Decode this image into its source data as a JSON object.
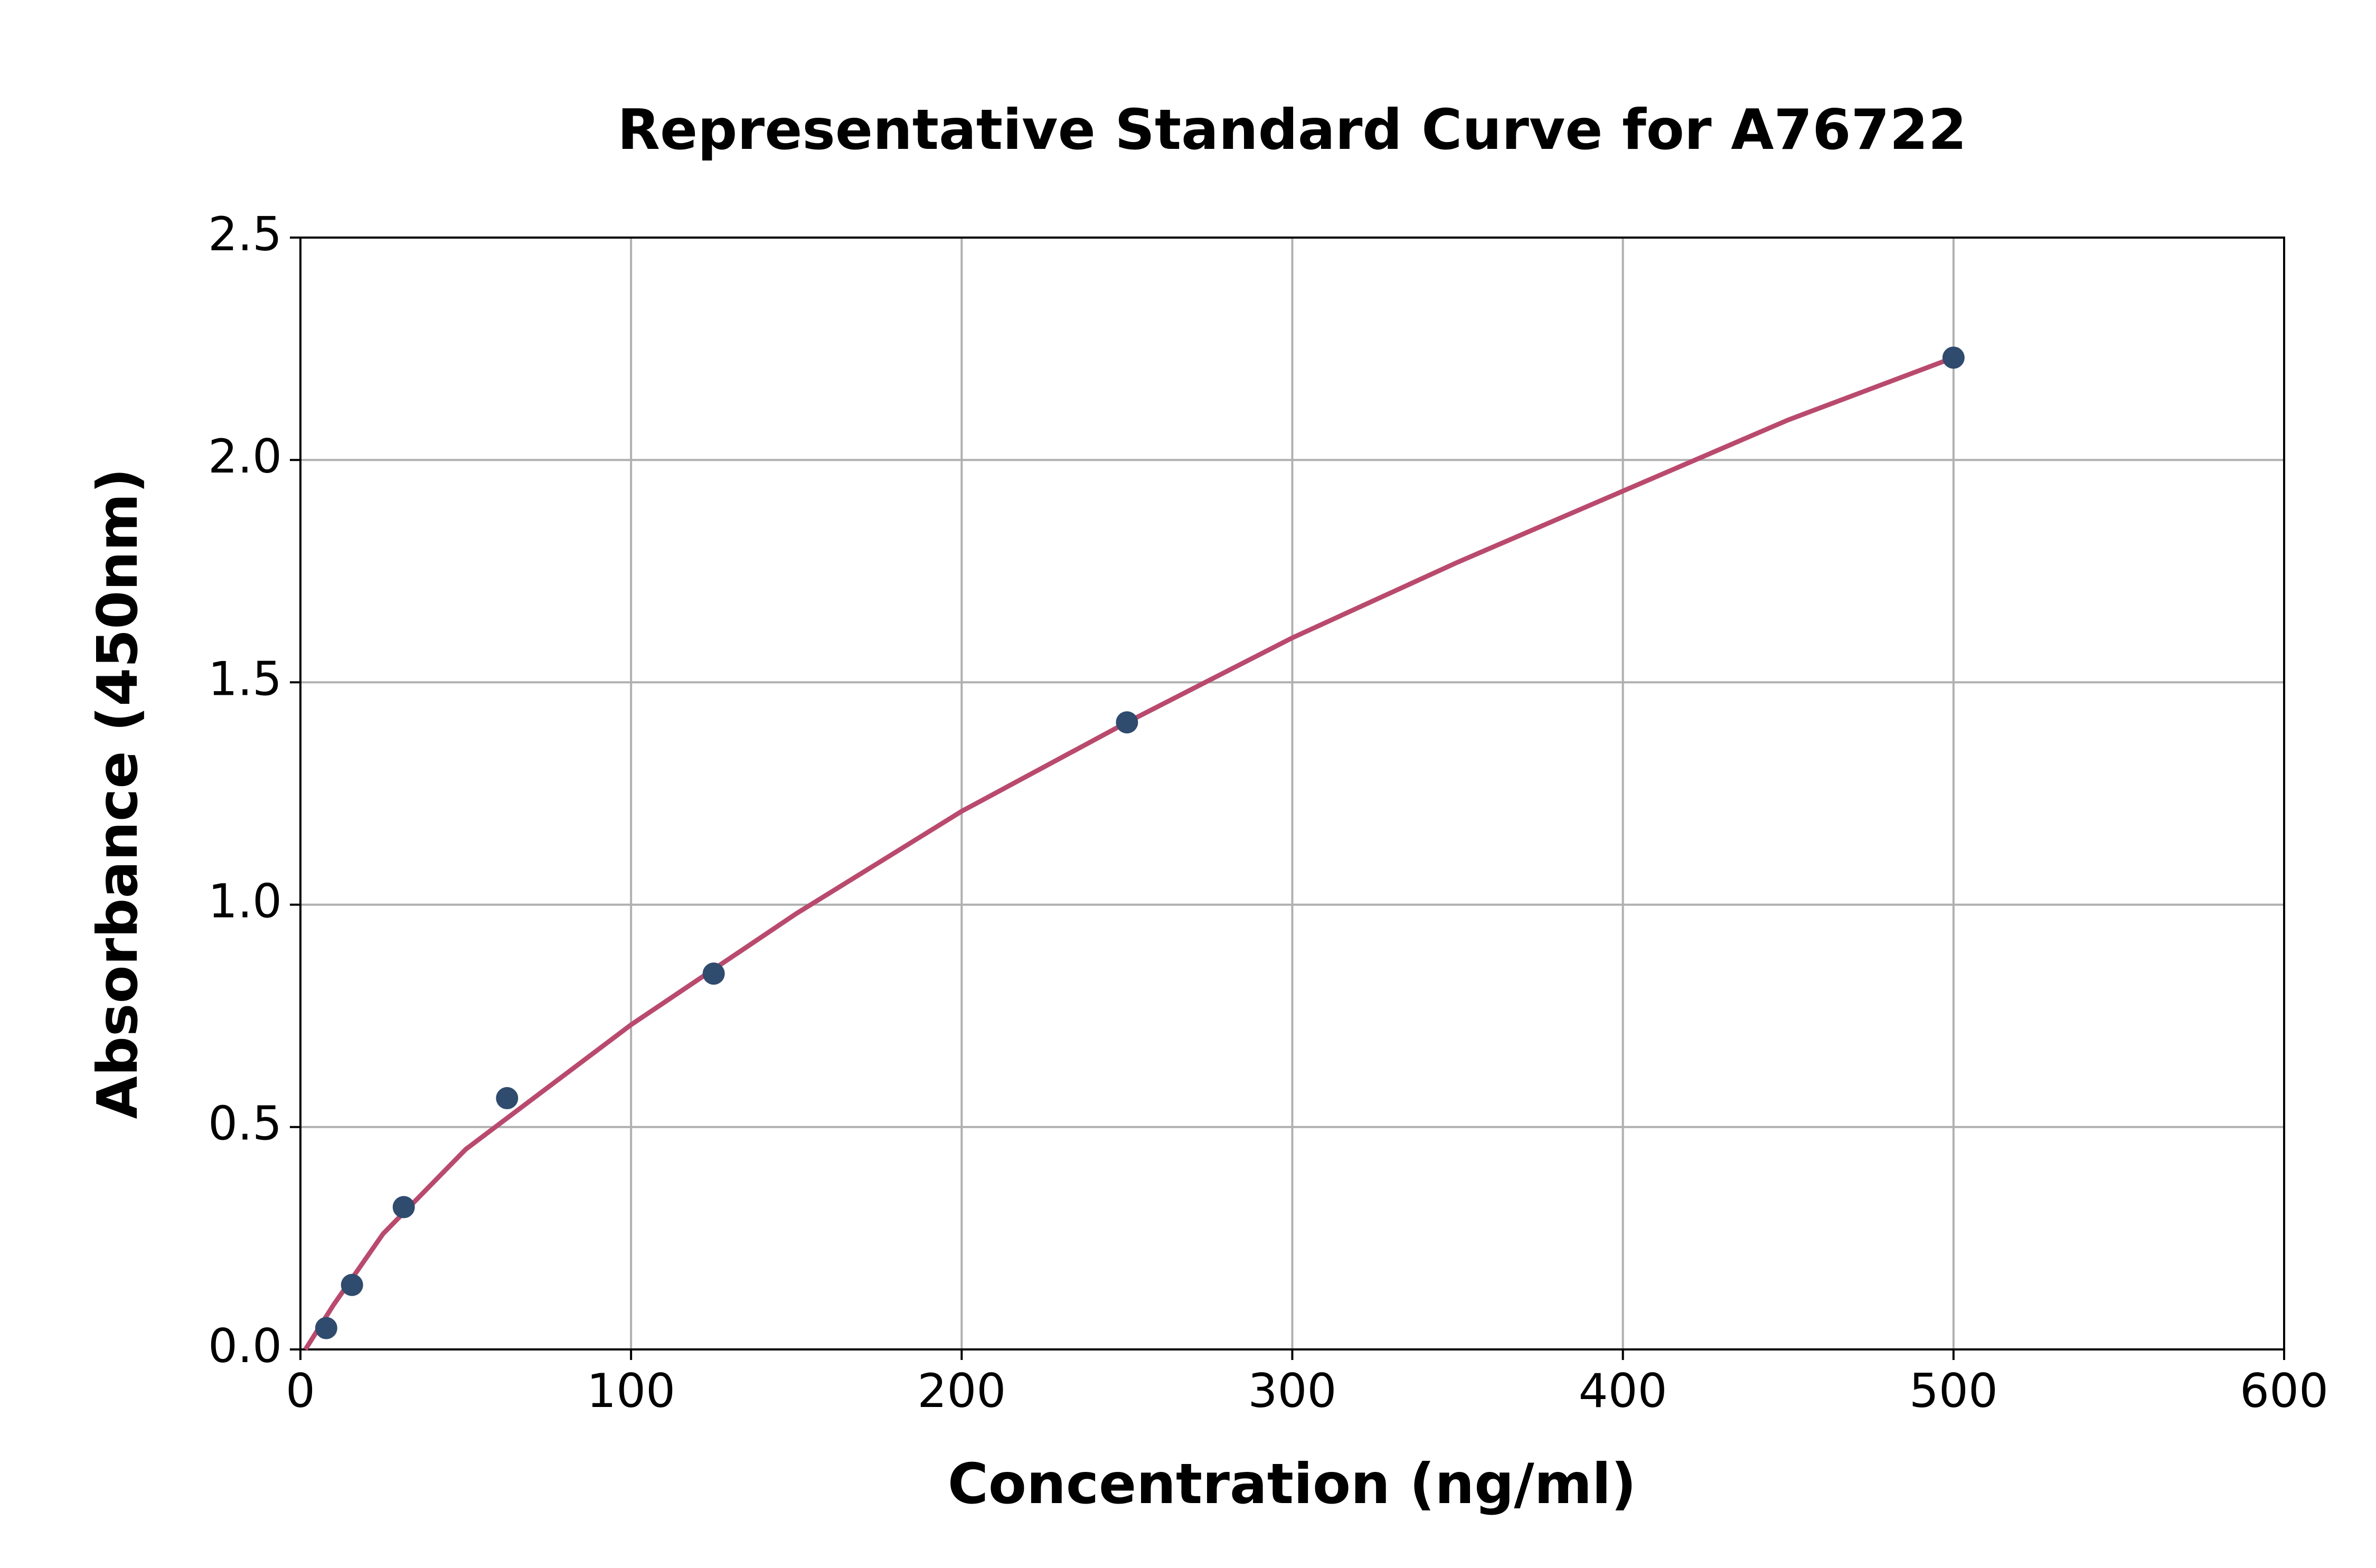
{
  "chart_data": {
    "type": "scatter",
    "title": "Representative Standard Curve for A76722",
    "x_label": "Concentration (ng/ml)",
    "y_label": "Absorbance (450nm)",
    "xlim": [
      0,
      600
    ],
    "ylim": [
      0,
      2.5
    ],
    "xticks": [
      0,
      100,
      200,
      300,
      400,
      500,
      600
    ],
    "yticks": [
      {
        "value": 0,
        "label": "0.0"
      },
      {
        "value": 0.5,
        "label": "0.5"
      },
      {
        "value": 1,
        "label": "1.0"
      },
      {
        "value": 1.5,
        "label": "1.5"
      },
      {
        "value": 2,
        "label": "2.0"
      },
      {
        "value": 2.5,
        "label": "2.5"
      }
    ],
    "grid": true,
    "series": [
      {
        "type": "line",
        "color": "#b94a6e",
        "x": [
          1.5,
          10,
          25,
          50,
          100,
          150,
          200,
          250,
          300,
          350,
          400,
          450,
          500
        ],
        "values": [
          0,
          0.1,
          0.26,
          0.45,
          0.73,
          0.98,
          1.21,
          1.41,
          1.6,
          1.77,
          1.93,
          2.09,
          2.23
        ]
      },
      {
        "type": "scatter",
        "color": "#2f4b6e",
        "x": [
          7.8,
          15.6,
          31.25,
          62.5,
          125,
          250,
          500
        ],
        "values": [
          0.048,
          0.145,
          0.32,
          0.565,
          0.845,
          1.41,
          2.23
        ]
      }
    ]
  }
}
